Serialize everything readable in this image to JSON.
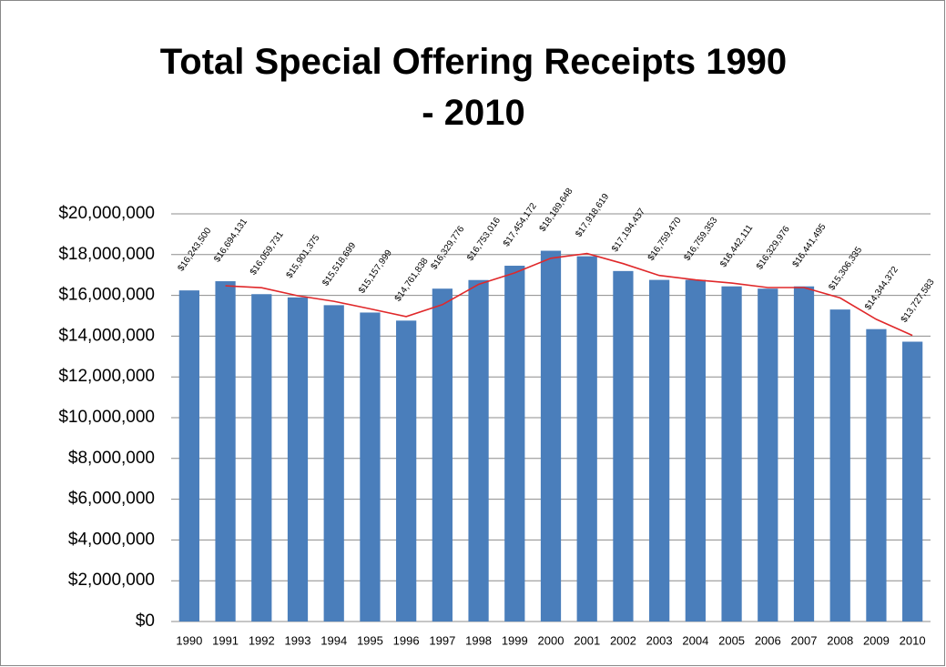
{
  "chart_data": {
    "type": "bar",
    "title": "Total Special Offering Receipts  1990 - 2010",
    "categories": [
      "1990",
      "1991",
      "1992",
      "1993",
      "1994",
      "1995",
      "1996",
      "1997",
      "1998",
      "1999",
      "2000",
      "2001",
      "2002",
      "2003",
      "2004",
      "2005",
      "2006",
      "2007",
      "2008",
      "2009",
      "2010"
    ],
    "values": [
      16243500,
      16694131,
      16059731,
      15901375,
      15518699,
      15157999,
      14761838,
      16329776,
      16753016,
      17454172,
      18189648,
      17918619,
      17194437,
      16759470,
      16759353,
      16442111,
      16329976,
      16441495,
      15306335,
      14344372,
      13727583
    ],
    "value_labels": [
      "$16,243,500",
      "$16,694,131",
      "$16,059,731",
      "$15,901,375",
      "$15,518,699",
      "$15,157,999",
      "$14,761,838",
      "$16,329,776",
      "$16,753,016",
      "$17,454,172",
      "$18,189,648",
      "$17,918,619",
      "$17,194,437",
      "$16,759,470",
      "$16,759,353",
      "$16,442,111",
      "$16,329,976",
      "$16,441,495",
      "$15,306,335",
      "$14,344,372",
      "$13,727,583"
    ],
    "color": "#4a7ebb",
    "trend": {
      "color": "#e0282a",
      "values": [
        null,
        16468816,
        16376931,
        15980553,
        15710037,
        15338349,
        14959919,
        15545807,
        16541396,
        17103594,
        17821910,
        18054134,
        17556528,
        16976954,
        16759412,
        16600732,
        16386044,
        16385736,
        15873915,
        14825354,
        14035978
      ]
    },
    "ylim": [
      0,
      20000000
    ],
    "yticks": [
      {
        "value": 0,
        "label": "$0"
      },
      {
        "value": 2000000,
        "label": "$2,000,000"
      },
      {
        "value": 4000000,
        "label": "$4,000,000"
      },
      {
        "value": 6000000,
        "label": "$6,000,000"
      },
      {
        "value": 8000000,
        "label": "$8,000,000"
      },
      {
        "value": 10000000,
        "label": "$10,000,000"
      },
      {
        "value": 12000000,
        "label": "$12,000,000"
      },
      {
        "value": 14000000,
        "label": "$14,000,000"
      },
      {
        "value": 16000000,
        "label": "$16,000,000"
      },
      {
        "value": 18000000,
        "label": "$18,000,000"
      },
      {
        "value": 20000000,
        "label": "$20,000,000"
      }
    ],
    "grid": true
  }
}
